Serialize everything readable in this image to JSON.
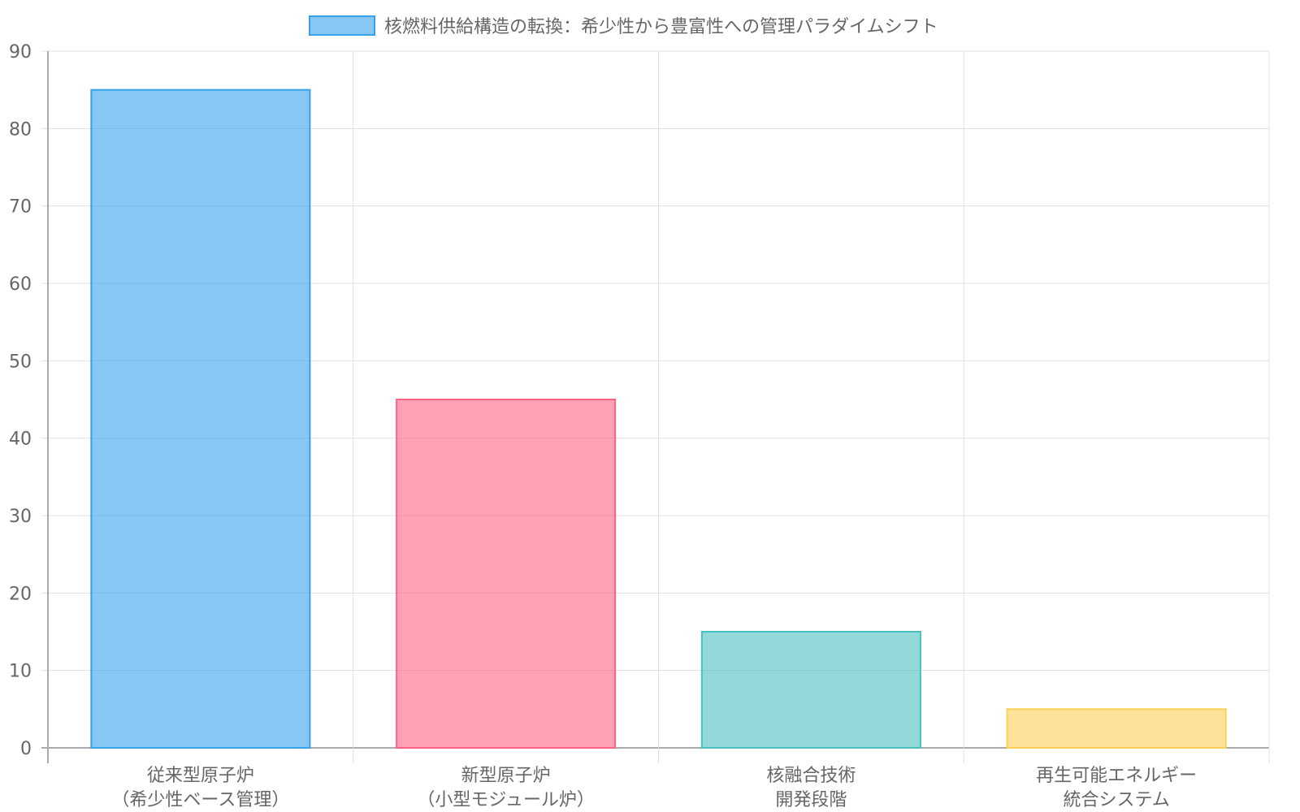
{
  "chart_data": {
    "type": "bar",
    "legend": {
      "label": "核燃料供給構造の転換：希少性から豊富性への管理パラダイムシフト",
      "placement": "top"
    },
    "categories": [
      [
        "従来型原子炉",
        "（希少性ベース管理）"
      ],
      [
        "新型原子炉",
        "（小型モジュール炉）"
      ],
      [
        "核融合技術",
        "開発段階"
      ],
      [
        "再生可能エネルギー",
        "統合システム"
      ]
    ],
    "values": [
      85,
      45,
      15,
      5
    ],
    "ylim": [
      0,
      90
    ],
    "yticks": [
      0,
      10,
      20,
      30,
      40,
      50,
      60,
      70,
      80,
      90
    ],
    "grid": true,
    "colors": {
      "fill": [
        "rgba(54,162,235,0.6)",
        "rgba(255,99,132,0.6)",
        "rgba(75,192,192,0.6)",
        "rgba(255,206,86,0.6)"
      ],
      "border": [
        "#36a2eb",
        "#ff6384",
        "#4bc0c0",
        "#ffce56"
      ]
    }
  }
}
